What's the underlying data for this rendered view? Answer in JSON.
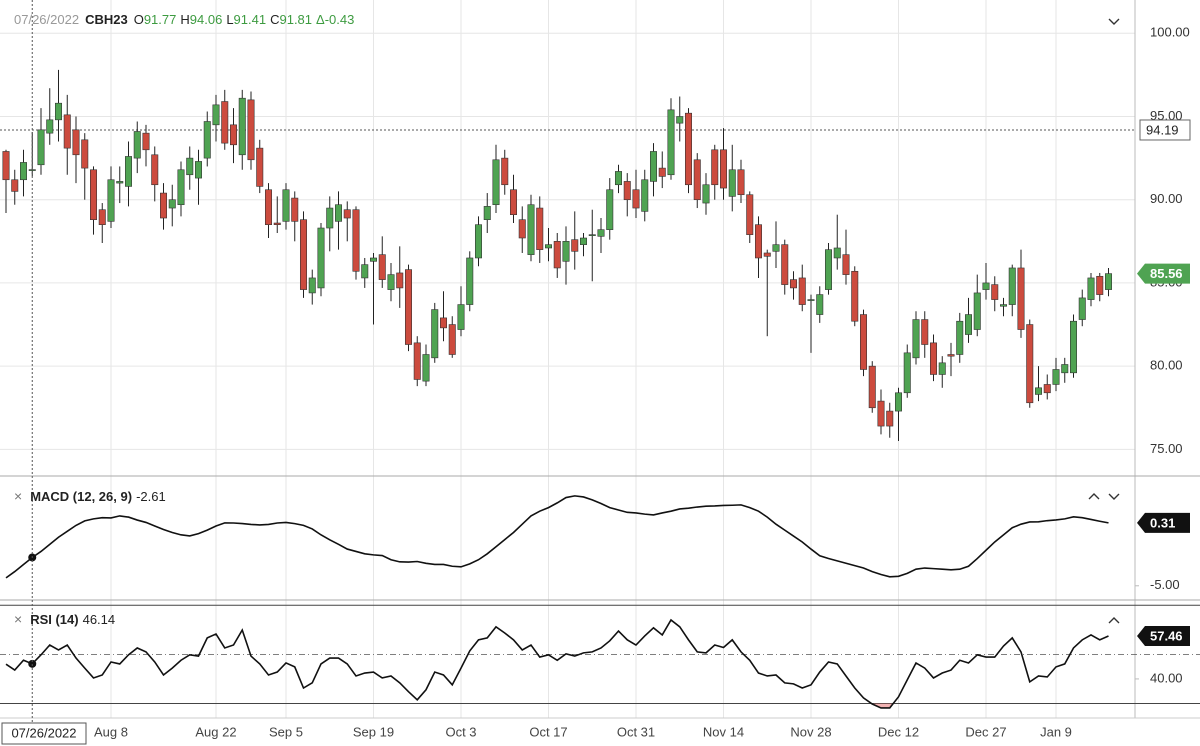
{
  "chart_data": [
    {
      "type": "candlestick",
      "symbol": "CBH23",
      "ohlc_labels": [
        "O",
        "H",
        "L",
        "C"
      ],
      "change_label": "Δ",
      "change": -0.43,
      "categories": [
        null,
        null,
        null,
        "07/26/2022",
        null,
        null,
        null,
        null,
        null,
        null,
        null,
        null,
        "Aug 8",
        null,
        null,
        null,
        null,
        null,
        null,
        null,
        null,
        null,
        null,
        null,
        "Aug 22",
        null,
        null,
        null,
        null,
        null,
        null,
        null,
        "Sep 5",
        null,
        null,
        null,
        null,
        null,
        null,
        null,
        null,
        null,
        "Sep 19",
        null,
        null,
        null,
        null,
        null,
        null,
        null,
        null,
        null,
        "Oct 3",
        null,
        null,
        null,
        null,
        null,
        null,
        null,
        null,
        null,
        "Oct 17",
        null,
        null,
        null,
        null,
        null,
        null,
        null,
        null,
        null,
        "Oct 31",
        null,
        null,
        null,
        null,
        null,
        null,
        null,
        null,
        null,
        "Nov 14",
        null,
        null,
        null,
        null,
        null,
        null,
        null,
        null,
        null,
        "Nov 28",
        null,
        null,
        null,
        null,
        null,
        null,
        null,
        null,
        null,
        "Dec 12",
        null,
        null,
        null,
        null,
        null,
        null,
        null,
        null,
        null,
        "Dec 27",
        null,
        null,
        null,
        null,
        null,
        null,
        null,
        "Jan 9",
        null,
        null,
        null,
        null,
        null,
        null
      ],
      "open": [
        92.9,
        91.2,
        91.2,
        91.77,
        92.1,
        94.0,
        94.8,
        95.1,
        94.2,
        93.6,
        91.8,
        89.4,
        88.7,
        91.0,
        90.8,
        92.5,
        94.0,
        92.7,
        90.4,
        89.5,
        89.7,
        91.5,
        91.3,
        92.5,
        94.5,
        95.9,
        94.5,
        92.7,
        96.0,
        93.1,
        90.6,
        88.6,
        88.7,
        90.1,
        88.8,
        84.4,
        84.7,
        88.3,
        88.7,
        89.4,
        89.4,
        85.3,
        86.3,
        86.7,
        84.6,
        85.6,
        85.8,
        81.4,
        79.1,
        80.5,
        82.9,
        82.5,
        82.2,
        83.7,
        86.5,
        88.8,
        89.7,
        92.5,
        90.6,
        88.8,
        86.7,
        89.5,
        87.1,
        87.5,
        86.3,
        87.6,
        87.3,
        87.9,
        87.8,
        88.2,
        90.9,
        91.1,
        90.6,
        89.3,
        91.1,
        91.9,
        91.5,
        94.6,
        95.2,
        92.4,
        89.8,
        93.0,
        93.0,
        90.2,
        91.8,
        90.3,
        88.5,
        86.8,
        86.9,
        87.3,
        85.2,
        85.3,
        84.0,
        83.1,
        84.6,
        86.5,
        86.7,
        85.7,
        83.1,
        80.0,
        77.9,
        77.3,
        77.3,
        78.4,
        80.5,
        82.8,
        81.4,
        79.5,
        80.7,
        80.7,
        81.9,
        82.2,
        84.6,
        84.9,
        83.6,
        83.7,
        85.9,
        82.5,
        78.3,
        78.9,
        78.9,
        79.6,
        79.6,
        82.8,
        84.0,
        85.4,
        84.6
      ],
      "high": [
        93.0,
        91.8,
        93.0,
        94.06,
        95.5,
        96.7,
        97.8,
        96.3,
        95.0,
        94.0,
        92.0,
        89.8,
        92.0,
        92.0,
        93.5,
        94.7,
        94.5,
        93.2,
        91.0,
        90.9,
        92.3,
        93.2,
        93.0,
        95.3,
        96.3,
        96.6,
        95.5,
        96.6,
        96.5,
        93.6,
        91.0,
        90.2,
        91.0,
        90.5,
        89.3,
        85.8,
        88.6,
        90.2,
        90.5,
        89.9,
        89.6,
        86.5,
        86.8,
        87.8,
        86.2,
        87.2,
        86.1,
        81.8,
        81.3,
        83.8,
        84.5,
        83.0,
        84.8,
        86.9,
        89.0,
        90.4,
        93.3,
        93.0,
        91.5,
        89.6,
        90.3,
        90.2,
        88.3,
        88.0,
        88.4,
        89.3,
        88.0,
        89.4,
        88.9,
        91.3,
        92.1,
        91.6,
        91.8,
        91.8,
        93.4,
        92.9,
        96.1,
        96.2,
        95.5,
        92.8,
        91.6,
        93.3,
        94.3,
        93.3,
        92.4,
        90.5,
        89.0,
        87.0,
        88.7,
        87.6,
        85.7,
        86.1,
        84.3,
        84.8,
        87.4,
        89.1,
        88.2,
        86.0,
        83.4,
        80.3,
        78.6,
        77.8,
        78.7,
        81.3,
        83.3,
        83.3,
        81.9,
        80.6,
        81.4,
        83.2,
        84.1,
        85.5,
        86.2,
        85.4,
        84.1,
        86.1,
        87.0,
        82.8,
        80.0,
        79.5,
        80.5,
        80.5,
        83.1,
        84.6,
        85.6,
        85.6,
        85.9
      ],
      "low": [
        89.2,
        89.7,
        90.2,
        91.41,
        91.5,
        93.3,
        93.5,
        91.5,
        91.0,
        90.0,
        87.9,
        87.4,
        88.3,
        89.8,
        89.6,
        91.6,
        92.0,
        89.9,
        88.2,
        88.4,
        89.0,
        90.6,
        89.7,
        92.0,
        93.5,
        93.0,
        92.2,
        91.8,
        91.8,
        90.4,
        87.7,
        88.0,
        88.2,
        87.5,
        84.1,
        83.7,
        84.2,
        86.9,
        87.0,
        87.5,
        85.2,
        84.7,
        82.5,
        84.7,
        83.9,
        83.5,
        80.9,
        78.8,
        78.8,
        80.2,
        81.5,
        80.5,
        81.8,
        83.3,
        86.0,
        88.0,
        89.2,
        90.3,
        88.6,
        86.8,
        86.3,
        86.2,
        86.3,
        85.3,
        84.9,
        85.8,
        86.6,
        85.1,
        86.8,
        87.6,
        90.4,
        89.0,
        88.9,
        88.7,
        90.2,
        90.7,
        91.2,
        93.5,
        90.4,
        89.5,
        89.1,
        90.0,
        90.0,
        89.3,
        89.8,
        87.4,
        85.3,
        81.8,
        85.9,
        84.3,
        84.0,
        83.3,
        80.8,
        82.6,
        84.3,
        85.8,
        84.9,
        82.4,
        79.4,
        77.2,
        75.9,
        75.7,
        75.5,
        78.1,
        80.1,
        80.5,
        79.1,
        78.7,
        79.4,
        80.2,
        81.4,
        81.8,
        84.0,
        83.3,
        83.0,
        83.0,
        81.7,
        77.5,
        77.9,
        78.0,
        78.5,
        79.0,
        79.3,
        82.4,
        83.6,
        83.9,
        84.2
      ],
      "close": [
        91.2,
        90.5,
        92.24,
        91.81,
        94.2,
        94.8,
        95.8,
        93.1,
        92.7,
        91.9,
        88.8,
        88.5,
        91.2,
        91.1,
        92.6,
        94.1,
        93.0,
        90.9,
        88.9,
        90.0,
        91.8,
        92.5,
        92.3,
        94.7,
        95.7,
        93.4,
        93.3,
        96.1,
        92.4,
        90.8,
        88.5,
        88.5,
        90.6,
        88.7,
        84.6,
        85.3,
        88.3,
        89.5,
        89.7,
        88.9,
        85.7,
        86.1,
        86.5,
        85.2,
        85.5,
        84.7,
        81.3,
        79.2,
        80.7,
        83.4,
        82.3,
        80.7,
        83.7,
        86.5,
        88.5,
        89.6,
        92.4,
        90.9,
        89.1,
        87.7,
        89.7,
        87.0,
        87.3,
        85.9,
        87.5,
        86.9,
        87.7,
        87.9,
        88.2,
        90.6,
        91.7,
        90.0,
        89.5,
        91.2,
        92.9,
        91.4,
        95.4,
        95.0,
        90.9,
        90.0,
        90.9,
        90.9,
        90.7,
        91.8,
        90.3,
        87.9,
        86.5,
        86.6,
        87.3,
        84.9,
        84.7,
        83.7,
        84.0,
        84.3,
        87.0,
        87.1,
        85.5,
        82.7,
        79.8,
        77.5,
        76.4,
        76.4,
        78.4,
        80.8,
        82.8,
        81.3,
        79.5,
        80.2,
        80.6,
        82.7,
        83.1,
        84.4,
        85.0,
        84.0,
        83.7,
        85.9,
        82.2,
        77.8,
        78.7,
        78.4,
        79.8,
        80.1,
        82.7,
        84.1,
        85.3,
        84.3,
        85.56
      ],
      "up_color": "#4fa352",
      "down_color": "#cc4b3e",
      "ylim": [
        73.4,
        102.0
      ],
      "yticks": [
        {
          "value": 100,
          "label": "100.00"
        },
        {
          "value": 95,
          "label": "95.00"
        },
        {
          "value": 90,
          "label": "90.00"
        },
        {
          "value": 85,
          "label": "85.00"
        },
        {
          "value": 80,
          "label": "80.00"
        },
        {
          "value": 75,
          "label": "75.00"
        }
      ],
      "grid": true,
      "crosshair_index": 3,
      "crosshair_price": 94.19
    },
    {
      "type": "line",
      "title": "MACD (12, 26, 9)",
      "color": "#111111",
      "values": [
        -4.33,
        -3.8,
        -3.2,
        -2.61,
        -2.1,
        -1.5,
        -0.9,
        -0.4,
        0.1,
        0.48,
        0.65,
        0.75,
        0.73,
        0.9,
        0.8,
        0.55,
        0.35,
        0.05,
        -0.25,
        -0.5,
        -0.7,
        -0.79,
        -0.6,
        -0.3,
        0.05,
        0.31,
        0.3,
        0.25,
        0.18,
        0.14,
        0.18,
        0.3,
        0.35,
        0.25,
        0.1,
        -0.2,
        -0.7,
        -1.12,
        -1.5,
        -1.9,
        -2.1,
        -2.3,
        -2.39,
        -2.45,
        -2.8,
        -2.98,
        -3.0,
        -2.95,
        -3.1,
        -3.2,
        -3.2,
        -3.35,
        -3.4,
        -3.15,
        -2.8,
        -2.3,
        -1.7,
        -1.1,
        -0.5,
        0.2,
        0.9,
        1.3,
        1.6,
        2.0,
        2.45,
        2.59,
        2.5,
        2.25,
        1.95,
        1.6,
        1.4,
        1.2,
        1.15,
        1.05,
        0.98,
        1.15,
        1.3,
        1.49,
        1.55,
        1.65,
        1.72,
        1.74,
        1.78,
        1.8,
        1.83,
        1.6,
        1.3,
        0.8,
        0.2,
        -0.3,
        -0.8,
        -1.3,
        -1.9,
        -2.47,
        -2.7,
        -2.9,
        -3.1,
        -3.3,
        -3.5,
        -3.8,
        -4.05,
        -4.24,
        -4.2,
        -3.95,
        -3.6,
        -3.5,
        -3.55,
        -3.6,
        -3.65,
        -3.6,
        -3.35,
        -2.7,
        -2.0,
        -1.3,
        -0.7,
        -0.1,
        0.2,
        0.39,
        0.4,
        0.5,
        0.56,
        0.65,
        0.82,
        0.75,
        0.6,
        0.45,
        0.31
      ],
      "ylim": [
        -6.2,
        4.1
      ],
      "yticks": [
        {
          "value": -5,
          "label": "-5.00"
        }
      ]
    },
    {
      "type": "line",
      "title": "RSI (14)",
      "color": "#111111",
      "values": [
        46,
        43.6,
        47.6,
        46.14,
        49.8,
        53.8,
        51.8,
        53.8,
        48.5,
        44.4,
        40.4,
        41.6,
        46.9,
        46.1,
        49.8,
        52.6,
        51,
        46.9,
        41.6,
        44.4,
        47.6,
        49.8,
        49.3,
        56.7,
        58.3,
        52.6,
        53.8,
        59.9,
        49.3,
        46.1,
        41.6,
        42.8,
        46.5,
        44.9,
        36.3,
        38.4,
        46.1,
        48.5,
        48.5,
        46.1,
        41.2,
        42.4,
        42.8,
        40.4,
        41.2,
        38.4,
        34.8,
        31.5,
        35.6,
        42.8,
        41.6,
        37.6,
        44.4,
        51.4,
        55.9,
        56.7,
        61.2,
        58.7,
        55.9,
        51.8,
        53.8,
        48.9,
        49.8,
        47.6,
        50.2,
        49.3,
        50.6,
        51,
        52.6,
        55.5,
        59.5,
        55.9,
        53.8,
        57.5,
        60.8,
        57.9,
        64,
        61.2,
        55.9,
        51,
        50.6,
        53.8,
        52.8,
        55.9,
        51,
        47.6,
        42.4,
        41.2,
        41.6,
        38.4,
        38,
        36.3,
        37.6,
        42.8,
        46.9,
        46.1,
        41.2,
        36.3,
        32.3,
        29.8,
        28.2,
        28.2,
        32.7,
        39.6,
        46.5,
        44.4,
        40.4,
        42.4,
        43.6,
        47.6,
        46.5,
        49.8,
        48.9,
        48.9,
        53.4,
        56.7,
        51,
        38.8,
        41.2,
        40.8,
        44.9,
        46.1,
        52.6,
        55.9,
        57.9,
        55.9,
        57.46
      ],
      "ylim": [
        24.1,
        70.9
      ],
      "yticks": [
        {
          "value": 40,
          "label": "40.00"
        }
      ],
      "overbought": 70,
      "midline": 50,
      "oversold": 30,
      "oversold_color": "#e57373"
    }
  ]
}
